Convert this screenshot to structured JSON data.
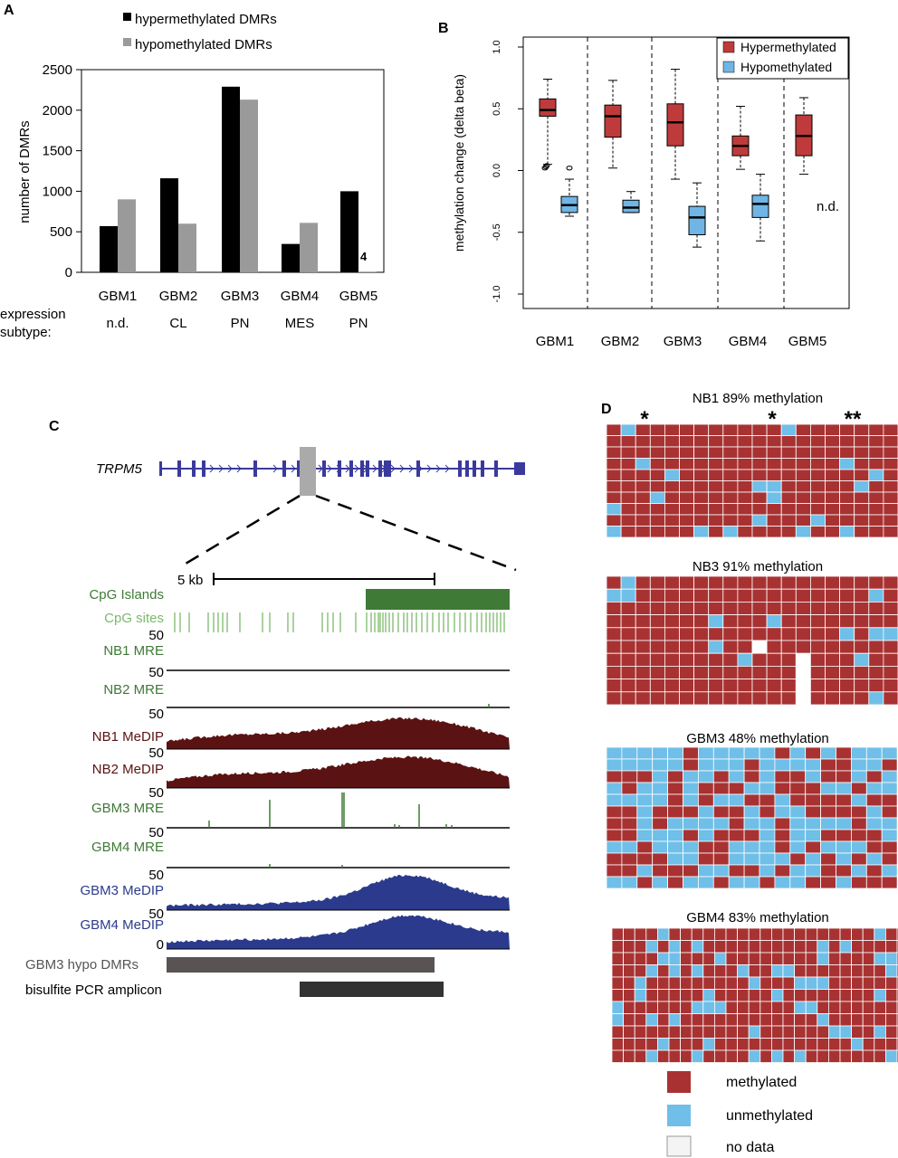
{
  "colors": {
    "hyper_bar": "#000000",
    "hypo_bar": "#9a9a9a",
    "hyper_box": "#bf3b3b",
    "hypo_box": "#6fb6e6",
    "methylated": "#a83232",
    "unmethylated": "#6fbfe8",
    "no_data": "#ffffff",
    "track_green": "#3f7a36",
    "track_light_green": "#7cb96b",
    "medip_dark_red": "#5a1212",
    "medip_blue": "#2b3a8c",
    "gene_blue": "#3a3a9e"
  },
  "panels": {
    "A": {
      "label": "A",
      "legend": [
        "hypermethylated DMRs",
        "hypomethylated DMRs"
      ],
      "ylabel": "number of DMRs",
      "yticks": [
        "0",
        "500",
        "1000",
        "1500",
        "2000",
        "2500"
      ],
      "row_label_1": "expression",
      "row_label_2": "subtype:",
      "subtypes": [
        "n.d.",
        "CL",
        "PN",
        "MES",
        "PN"
      ],
      "annotation": "4"
    },
    "B": {
      "label": "B",
      "ylabel": "methylation change (delta beta)",
      "yticks": [
        "1.0",
        "0.5",
        "0.0",
        "-0.5",
        "-1.0"
      ],
      "legend": [
        "Hypermethylated",
        "Hypomethylated"
      ],
      "nd_label": "n.d."
    },
    "C": {
      "label": "C",
      "gene": "TRPM5",
      "scale_label": "5 kb",
      "tracks": [
        {
          "name": "CpG Islands",
          "scale": "",
          "kind": "island",
          "color": "#3f7a36"
        },
        {
          "name": "CpG sites",
          "scale": "",
          "kind": "sites",
          "color": "#7cb96b"
        },
        {
          "name": "NB1 MRE",
          "scale": "50",
          "kind": "mre",
          "color": "#3f7a36"
        },
        {
          "name": "NB2 MRE",
          "scale": "50",
          "kind": "mre",
          "color": "#3f7a36"
        },
        {
          "name": "NB1 MeDIP",
          "scale": "50",
          "kind": "medip",
          "color": "#5a1212"
        },
        {
          "name": "NB2 MeDIP",
          "scale": "50",
          "kind": "medip",
          "color": "#5a1212"
        },
        {
          "name": "GBM3 MRE",
          "scale": "50",
          "kind": "mre",
          "color": "#3f7a36"
        },
        {
          "name": "GBM4 MRE",
          "scale": "50",
          "kind": "mre",
          "color": "#3f7a36"
        },
        {
          "name": "GBM3 MeDIP",
          "scale": "50",
          "kind": "medip",
          "color": "#2b3a8c"
        },
        {
          "name": "GBM4 MeDIP",
          "scale": "50",
          "kind": "medip",
          "color": "#2b3a8c"
        }
      ],
      "bottom_zero": "0",
      "dmr_label": "GBM3 hypo DMRs",
      "amplicon_label": "bisulfite PCR amplicon"
    },
    "D": {
      "label": "D",
      "grids": [
        {
          "title": "NB1 89% methylation"
        },
        {
          "title": "NB3 91% methylation"
        },
        {
          "title": "GBM3 48% methylation"
        },
        {
          "title": "GBM4 83% methylation"
        }
      ],
      "asterisks": [
        "*",
        "*",
        "**"
      ],
      "legend": [
        "methylated",
        "unmethylated",
        "no data"
      ]
    }
  },
  "chart_data": [
    {
      "type": "bar",
      "title": "",
      "xlabel": "",
      "ylabel": "number of DMRs",
      "ylim": [
        0,
        2500
      ],
      "categories": [
        "GBM1",
        "GBM2",
        "GBM3",
        "GBM4",
        "GBM5"
      ],
      "series": [
        {
          "name": "hypermethylated DMRs",
          "values": [
            570,
            1160,
            2290,
            350,
            1000
          ]
        },
        {
          "name": "hypomethylated DMRs",
          "values": [
            900,
            600,
            2130,
            610,
            4
          ]
        }
      ]
    },
    {
      "type": "box",
      "title": "",
      "xlabel": "",
      "ylabel": "methylation change (delta beta)",
      "ylim": [
        -1.0,
        1.0
      ],
      "categories": [
        "GBM1",
        "GBM2",
        "GBM3",
        "GBM4",
        "GBM5"
      ],
      "series": [
        {
          "name": "Hypermethylated",
          "boxes": [
            {
              "min": 0.05,
              "q1": 0.44,
              "median": 0.49,
              "q3": 0.58,
              "max": 0.74,
              "outliers": [
                0.02,
                0.03,
                0.04
              ]
            },
            {
              "min": 0.02,
              "q1": 0.27,
              "median": 0.44,
              "q3": 0.53,
              "max": 0.73,
              "outliers": []
            },
            {
              "min": -0.07,
              "q1": 0.2,
              "median": 0.39,
              "q3": 0.54,
              "max": 0.82,
              "outliers": []
            },
            {
              "min": 0.01,
              "q1": 0.12,
              "median": 0.2,
              "q3": 0.28,
              "max": 0.52,
              "outliers": []
            },
            {
              "min": -0.03,
              "q1": 0.12,
              "median": 0.28,
              "q3": 0.45,
              "max": 0.59,
              "outliers": []
            }
          ]
        },
        {
          "name": "Hypomethylated",
          "boxes": [
            {
              "min": -0.37,
              "q1": -0.34,
              "median": -0.28,
              "q3": -0.21,
              "max": -0.07,
              "outliers": [
                0.02
              ]
            },
            {
              "min": -0.34,
              "q1": -0.34,
              "median": -0.3,
              "q3": -0.24,
              "max": -0.17,
              "outliers": []
            },
            {
              "min": -0.62,
              "q1": -0.52,
              "median": -0.38,
              "q3": -0.29,
              "max": -0.1,
              "outliers": []
            },
            {
              "min": -0.57,
              "q1": -0.38,
              "median": -0.27,
              "q3": -0.2,
              "max": -0.03,
              "outliers": []
            },
            null
          ]
        }
      ]
    }
  ]
}
